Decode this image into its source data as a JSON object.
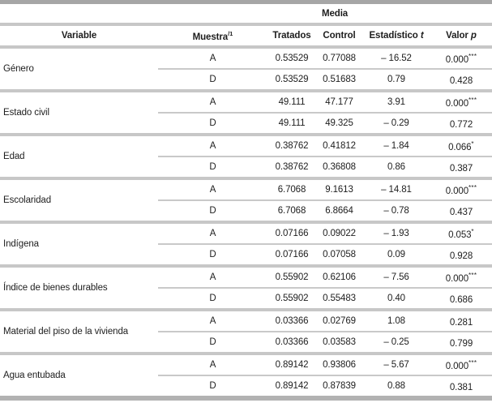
{
  "table": {
    "spanner_label": "Media",
    "columns": [
      {
        "text": "Variable"
      },
      {
        "text": "Muestra",
        "sup": "/1"
      },
      {
        "text": "Tratados"
      },
      {
        "text": "Control"
      },
      {
        "text": "Estadístico ",
        "italic": "t"
      },
      {
        "text": "Valor ",
        "italic": "p"
      }
    ],
    "groups": [
      {
        "variable": "Género",
        "rows": [
          {
            "muestra": "A",
            "tratados": "0.53529",
            "control": "0.77088",
            "t_stat": "– 16.52",
            "p_value": "0.000",
            "stars": "***"
          },
          {
            "muestra": "D",
            "tratados": "0.53529",
            "control": "0.51683",
            "t_stat": "0.79",
            "p_value": "0.428",
            "stars": ""
          }
        ]
      },
      {
        "variable": "Estado civil",
        "rows": [
          {
            "muestra": "A",
            "tratados": "49.111",
            "control": "47.177",
            "t_stat": "3.91",
            "p_value": "0.000",
            "stars": "***"
          },
          {
            "muestra": "D",
            "tratados": "49.111",
            "control": "49.325",
            "t_stat": "– 0.29",
            "p_value": "0.772",
            "stars": ""
          }
        ]
      },
      {
        "variable": "Edad",
        "rows": [
          {
            "muestra": "A",
            "tratados": "0.38762",
            "control": "0.41812",
            "t_stat": "– 1.84",
            "p_value": "0.066",
            "stars": "*"
          },
          {
            "muestra": "D",
            "tratados": "0.38762",
            "control": "0.36808",
            "t_stat": "0.86",
            "p_value": "0.387",
            "stars": ""
          }
        ]
      },
      {
        "variable": "Escolaridad",
        "rows": [
          {
            "muestra": "A",
            "tratados": "6.7068",
            "control": "9.1613",
            "t_stat": "– 14.81",
            "p_value": "0.000",
            "stars": "***"
          },
          {
            "muestra": "D",
            "tratados": "6.7068",
            "control": "6.8664",
            "t_stat": "– 0.78",
            "p_value": "0.437",
            "stars": ""
          }
        ]
      },
      {
        "variable": "Indígena",
        "rows": [
          {
            "muestra": "A",
            "tratados": "0.07166",
            "control": "0.09022",
            "t_stat": "– 1.93",
            "p_value": "0.053",
            "stars": "*"
          },
          {
            "muestra": "D",
            "tratados": "0.07166",
            "control": "0.07058",
            "t_stat": "0.09",
            "p_value": "0.928",
            "stars": ""
          }
        ]
      },
      {
        "variable": "Índice de bienes durables",
        "rows": [
          {
            "muestra": "A",
            "tratados": "0.55902",
            "control": "0.62106",
            "t_stat": "– 7.56",
            "p_value": "0.000",
            "stars": "***"
          },
          {
            "muestra": "D",
            "tratados": "0.55902",
            "control": "0.55483",
            "t_stat": "0.40",
            "p_value": "0.686",
            "stars": ""
          }
        ]
      },
      {
        "variable": "Material del piso de la vivienda",
        "rows": [
          {
            "muestra": "A",
            "tratados": "0.03366",
            "control": "0.02769",
            "t_stat": "1.08",
            "p_value": "0.281",
            "stars": ""
          },
          {
            "muestra": "D",
            "tratados": "0.03366",
            "control": "0.03583",
            "t_stat": "– 0.25",
            "p_value": "0.799",
            "stars": ""
          }
        ]
      },
      {
        "variable": "Agua entubada",
        "rows": [
          {
            "muestra": "A",
            "tratados": "0.89142",
            "control": "0.93806",
            "t_stat": "– 5.67",
            "p_value": "0.000",
            "stars": "***"
          },
          {
            "muestra": "D",
            "tratados": "0.89142",
            "control": "0.87839",
            "t_stat": "0.88",
            "p_value": "0.381",
            "stars": ""
          }
        ]
      }
    ]
  }
}
